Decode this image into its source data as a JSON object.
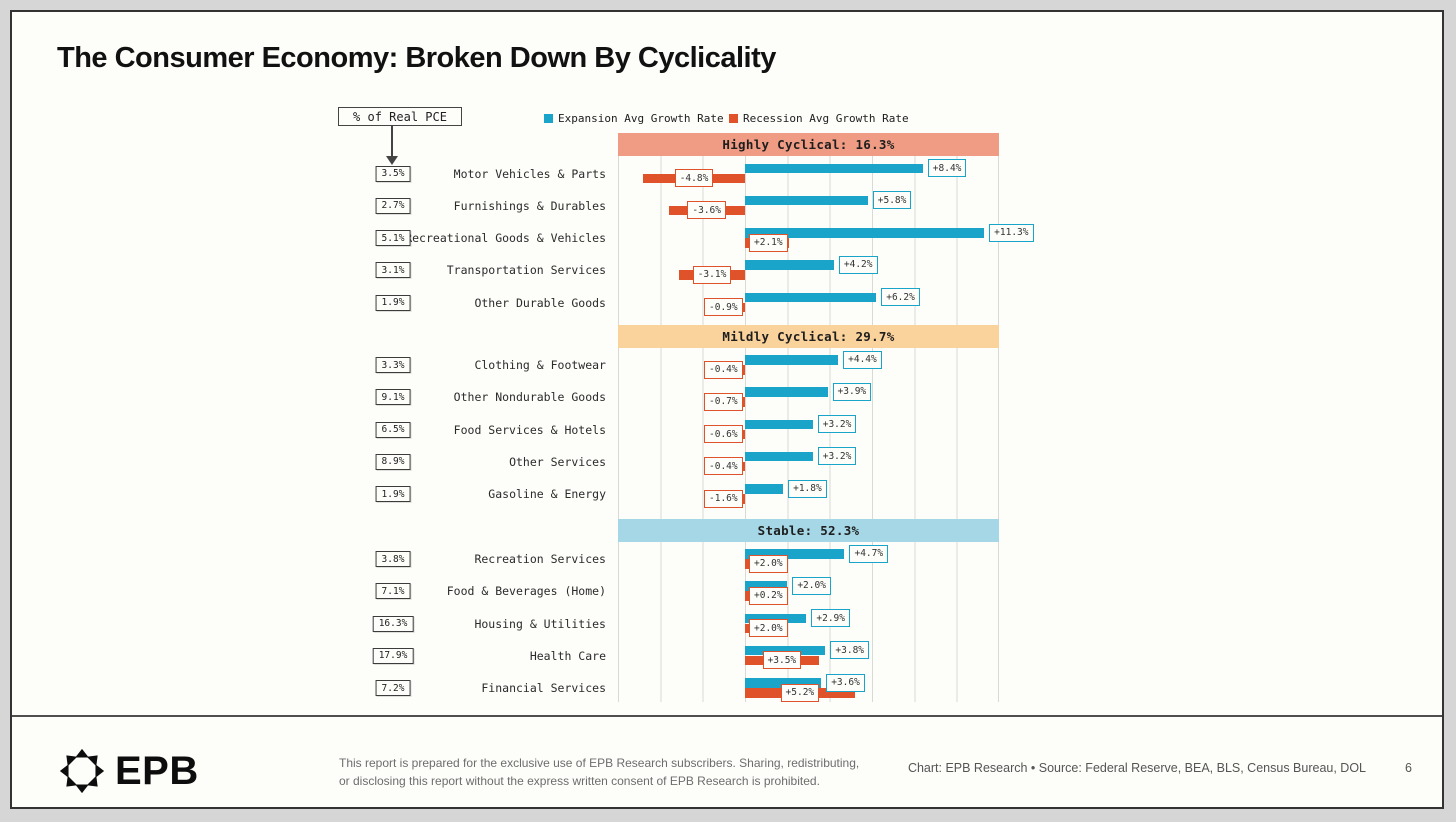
{
  "title": "The Consumer Economy: Broken Down By Cyclicality",
  "pce_annotation": "% of Real PCE",
  "legend": [
    {
      "label": "Expansion Avg Growth Rate",
      "color": "#1ba4c9"
    },
    {
      "label": "Recession Avg Growth Rate",
      "color": "#e0532a"
    }
  ],
  "chart_data": {
    "type": "bar",
    "orientation": "horizontal",
    "xlim": [
      -6,
      12
    ],
    "grid_step_pct": 2,
    "grid": true,
    "series_names": [
      "Expansion Avg Growth Rate",
      "Recession Avg Growth Rate"
    ],
    "sections": [
      {
        "header": "Highly Cyclical: 16.3%",
        "color": "#f09c84",
        "rows": [
          {
            "label": "Motor Vehicles & Parts",
            "pce": "3.5%",
            "expansion": 8.4,
            "expansion_label": "+8.4%",
            "recession": -4.8,
            "recession_label": "-4.8%"
          },
          {
            "label": "Furnishings & Durables",
            "pce": "2.7%",
            "expansion": 5.8,
            "expansion_label": "+5.8%",
            "recession": -3.6,
            "recession_label": "-3.6%"
          },
          {
            "label": "Recreational Goods & Vehicles",
            "pce": "5.1%",
            "expansion": 11.3,
            "expansion_label": "+11.3%",
            "recession": 2.1,
            "recession_label": "+2.1%"
          },
          {
            "label": "Transportation Services",
            "pce": "3.1%",
            "expansion": 4.2,
            "expansion_label": "+4.2%",
            "recession": -3.1,
            "recession_label": "-3.1%"
          },
          {
            "label": "Other Durable Goods",
            "pce": "1.9%",
            "expansion": 6.2,
            "expansion_label": "+6.2%",
            "recession": -0.9,
            "recession_label": "-0.9%"
          }
        ]
      },
      {
        "header": "Mildly Cyclical: 29.7%",
        "color": "#f9d29c",
        "rows": [
          {
            "label": "Clothing & Footwear",
            "pce": "3.3%",
            "expansion": 4.4,
            "expansion_label": "+4.4%",
            "recession": -0.4,
            "recession_label": "-0.4%"
          },
          {
            "label": "Other Nondurable Goods",
            "pce": "9.1%",
            "expansion": 3.9,
            "expansion_label": "+3.9%",
            "recession": -0.7,
            "recession_label": "-0.7%"
          },
          {
            "label": "Food Services & Hotels",
            "pce": "6.5%",
            "expansion": 3.2,
            "expansion_label": "+3.2%",
            "recession": -0.6,
            "recession_label": "-0.6%"
          },
          {
            "label": "Other Services",
            "pce": "8.9%",
            "expansion": 3.2,
            "expansion_label": "+3.2%",
            "recession": -0.4,
            "recession_label": "-0.4%"
          },
          {
            "label": "Gasoline & Energy",
            "pce": "1.9%",
            "expansion": 1.8,
            "expansion_label": "+1.8%",
            "recession": -1.6,
            "recession_label": "-1.6%"
          }
        ]
      },
      {
        "header": "Stable: 52.3%",
        "color": "#a5d7e6",
        "rows": [
          {
            "label": "Recreation Services",
            "pce": "3.8%",
            "expansion": 4.7,
            "expansion_label": "+4.7%",
            "recession": 2.0,
            "recession_label": "+2.0%"
          },
          {
            "label": "Food & Beverages (Home)",
            "pce": "7.1%",
            "expansion": 2.0,
            "expansion_label": "+2.0%",
            "recession": 0.2,
            "recession_label": "+0.2%"
          },
          {
            "label": "Housing & Utilities",
            "pce": "16.3%",
            "expansion": 2.9,
            "expansion_label": "+2.9%",
            "recession": 2.0,
            "recession_label": "+2.0%"
          },
          {
            "label": "Health Care",
            "pce": "17.9%",
            "expansion": 3.8,
            "expansion_label": "+3.8%",
            "recession": 3.5,
            "recession_label": "+3.5%"
          },
          {
            "label": "Financial Services",
            "pce": "7.2%",
            "expansion": 3.6,
            "expansion_label": "+3.6%",
            "recession": 5.2,
            "recession_label": "+5.2%"
          }
        ]
      }
    ]
  },
  "footer": {
    "logo_text": "EPB",
    "disclaimer_line1": "This report is prepared for the exclusive use of EPB Research subscribers. Sharing, redistributing,",
    "disclaimer_line2": "or disclosing this report without the express written consent of EPB Research is prohibited.",
    "source": "Chart: EPB Research  •  Source: Federal Reserve, BEA, BLS, Census Bureau, DOL",
    "page_number": "6"
  }
}
